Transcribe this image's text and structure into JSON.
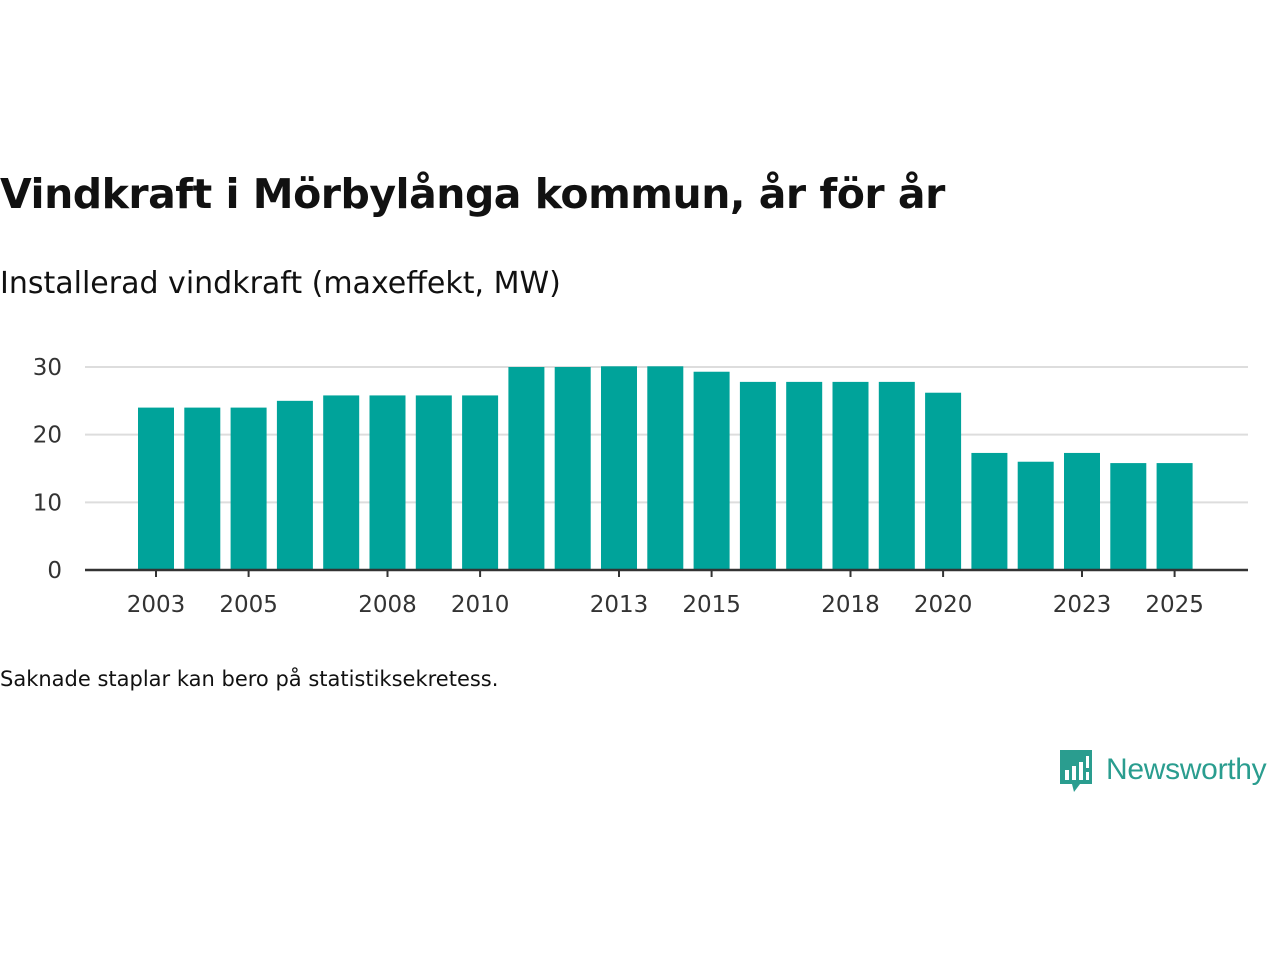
{
  "chart_data": {
    "type": "bar",
    "title": "Vindkraft i Mörbylånga kommun, år för år",
    "subtitle": "Installerad vindkraft (maxeffekt, MW)",
    "xlabel": "",
    "ylabel": "",
    "ylim": [
      0,
      30
    ],
    "yticks": [
      0,
      10,
      20,
      30
    ],
    "xticks": [
      "2003",
      "2005",
      "2008",
      "2010",
      "2013",
      "2015",
      "2018",
      "2020",
      "2023",
      "2025"
    ],
    "categories": [
      "2003",
      "2004",
      "2005",
      "2006",
      "2007",
      "2008",
      "2009",
      "2010",
      "2011",
      "2012",
      "2013",
      "2014",
      "2015",
      "2016",
      "2017",
      "2018",
      "2019",
      "2020",
      "2021",
      "2022",
      "2023",
      "2024",
      "2025"
    ],
    "values": [
      24,
      24,
      24,
      25,
      25.8,
      25.8,
      25.8,
      25.8,
      30,
      30,
      30.1,
      30.1,
      29.3,
      27.8,
      27.8,
      27.8,
      27.8,
      26.2,
      17.3,
      16,
      17.3,
      15.8,
      15.8
    ],
    "bar_color": "#00a39a",
    "grid": true
  },
  "footnote": "Saknade staplar kan bero på statistiksekretess.",
  "brand": {
    "name": "Newsworthy",
    "color": "#2a9d8f",
    "icon": "bar-chart-speech-bubble-icon"
  }
}
